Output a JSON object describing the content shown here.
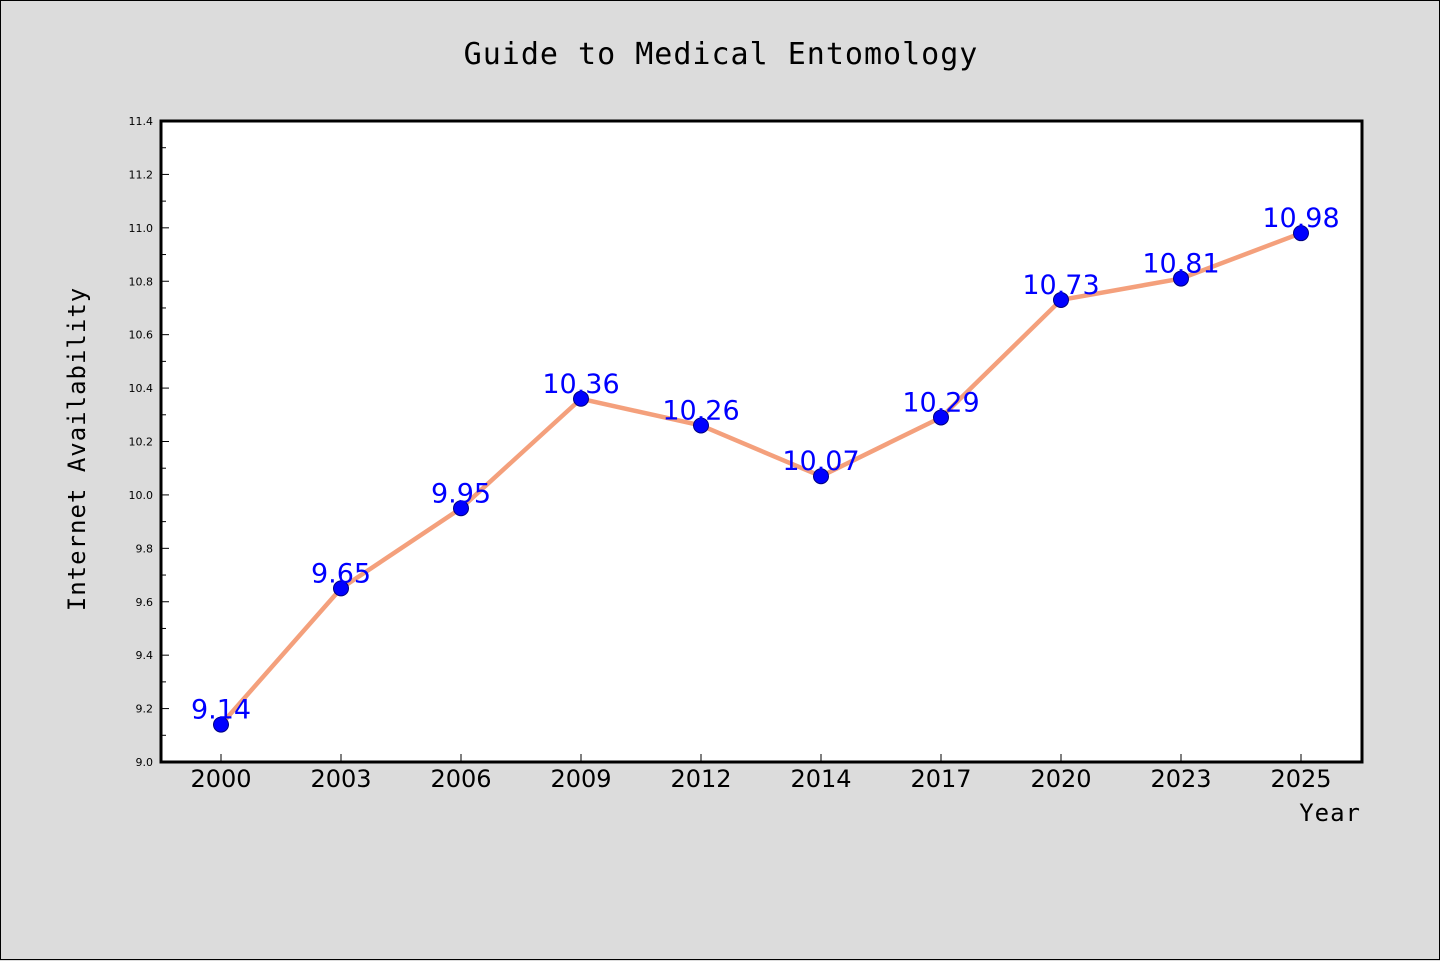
{
  "chart_data": {
    "type": "line",
    "title": "Guide to Medical Entomology",
    "xlabel": "Year",
    "ylabel": "Internet Availability",
    "categories": [
      "2000",
      "2003",
      "2006",
      "2009",
      "2012",
      "2014",
      "2017",
      "2020",
      "2023",
      "2025"
    ],
    "series": [
      {
        "values": [
          9.14,
          9.65,
          9.95,
          10.36,
          10.26,
          10.07,
          10.29,
          10.73,
          10.81,
          10.98
        ]
      }
    ],
    "data_labels": [
      "9.14",
      "9.65",
      "9.95",
      "10.36",
      "10.26",
      "10.07",
      "10.29",
      "10.73",
      "10.81",
      "10.98"
    ],
    "ylim": [
      9.0,
      11.4
    ],
    "yticks": [
      "9.0",
      "9.2",
      "9.4",
      "9.6",
      "9.8",
      "10.0",
      "10.2",
      "10.4",
      "10.6",
      "10.8",
      "11.0",
      "11.2",
      "11.4"
    ],
    "grid": false,
    "colors": {
      "line": "#f4a07c",
      "marker_fill": "#0000ff",
      "marker_edge": "#000080",
      "data_label": "#0000ff",
      "background": "#dcdcdc",
      "plot_area": "#ffffff"
    }
  }
}
